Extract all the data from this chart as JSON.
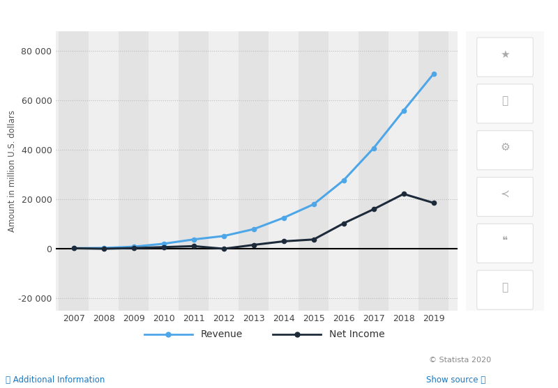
{
  "years": [
    2007,
    2008,
    2009,
    2010,
    2011,
    2012,
    2013,
    2014,
    2015,
    2016,
    2017,
    2018,
    2019
  ],
  "revenue": [
    153,
    272,
    777,
    1974,
    3711,
    5089,
    7872,
    12466,
    17928,
    27638,
    40653,
    55838,
    70697
  ],
  "net_income": [
    138,
    -56,
    222,
    606,
    1000,
    -59,
    1500,
    2940,
    3688,
    10217,
    15934,
    22112,
    18485
  ],
  "revenue_color": "#4da6e8",
  "net_income_color": "#1c2a3a",
  "background_color": "#ffffff",
  "plot_bg_light": "#efefef",
  "plot_bg_dark": "#e3e3e3",
  "ylabel": "Amount in million U.S. dollars",
  "legend_revenue": "Revenue",
  "legend_net_income": "Net Income",
  "ylim": [
    -25000,
    88000
  ],
  "yticks": [
    -20000,
    0,
    20000,
    40000,
    60000,
    80000
  ],
  "ytick_labels": [
    "-20 000",
    "0",
    "20 000",
    "40 000",
    "60 000",
    "80 000"
  ],
  "watermark": "© Statista 2020",
  "grid_color": "#bbbbbb",
  "add_info": "Additional Information",
  "show_source": "Show source",
  "link_color": "#1a78c2"
}
